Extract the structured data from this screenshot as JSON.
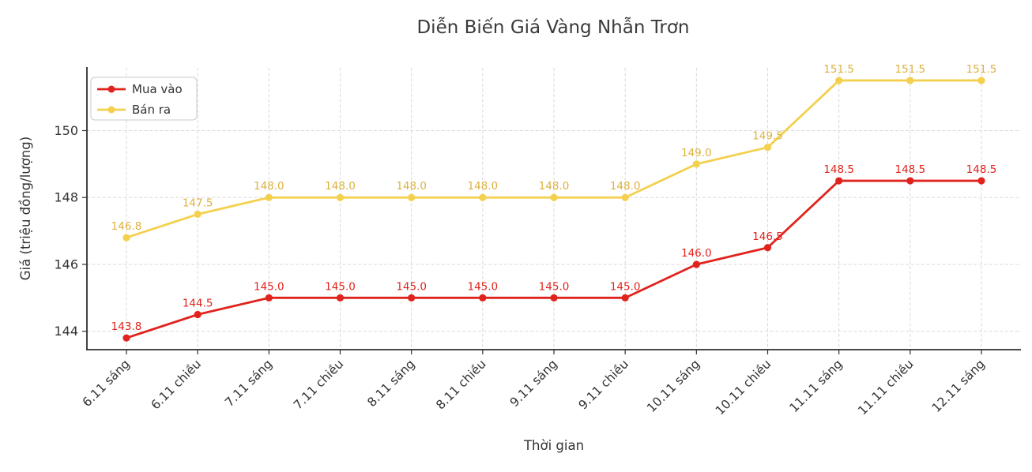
{
  "chart_data": {
    "type": "line",
    "title": "Diễn Biến Giá Vàng Nhẫn Trơn",
    "xlabel": "Thời gian",
    "ylabel": "Giá (triệu đồng/lượng)",
    "categories": [
      "6.11 sáng",
      "6.11 chiều",
      "7.11 sáng",
      "7.11 chiều",
      "8.11 sáng",
      "8.11 chiều",
      "9.11 sáng",
      "9.11 chiều",
      "10.11 sáng",
      "10.11 chiều",
      "11.11 sáng",
      "11.11 chiều",
      "12.11 sáng"
    ],
    "series": [
      {
        "name": "Mua vào",
        "color": "#e0231c",
        "label_color": "#e0231c",
        "values": [
          143.8,
          144.5,
          145.0,
          145.0,
          145.0,
          145.0,
          145.0,
          145.0,
          146.0,
          146.5,
          148.5,
          148.5,
          148.5
        ]
      },
      {
        "name": "Bán ra",
        "color": "#f3d04e",
        "label_color": "#ddb13f",
        "values": [
          146.8,
          147.5,
          148.0,
          148.0,
          148.0,
          148.0,
          148.0,
          148.0,
          149.0,
          149.5,
          151.5,
          151.5,
          151.5
        ]
      }
    ],
    "yticks": [
      144,
      146,
      148,
      150
    ],
    "ylim": [
      143.45,
      151.9
    ],
    "grid": true,
    "grid_style": "dashed",
    "legend_position": "upper-left",
    "data_labels": true,
    "data_label_decimals": 1
  },
  "colors": {
    "background": "#ffffff",
    "grid": "#d9d9d9",
    "spine": "#2f2f2f",
    "tick_text": "#333333",
    "title_text": "#3a3a3a",
    "legend_border": "#c9c9c9"
  }
}
